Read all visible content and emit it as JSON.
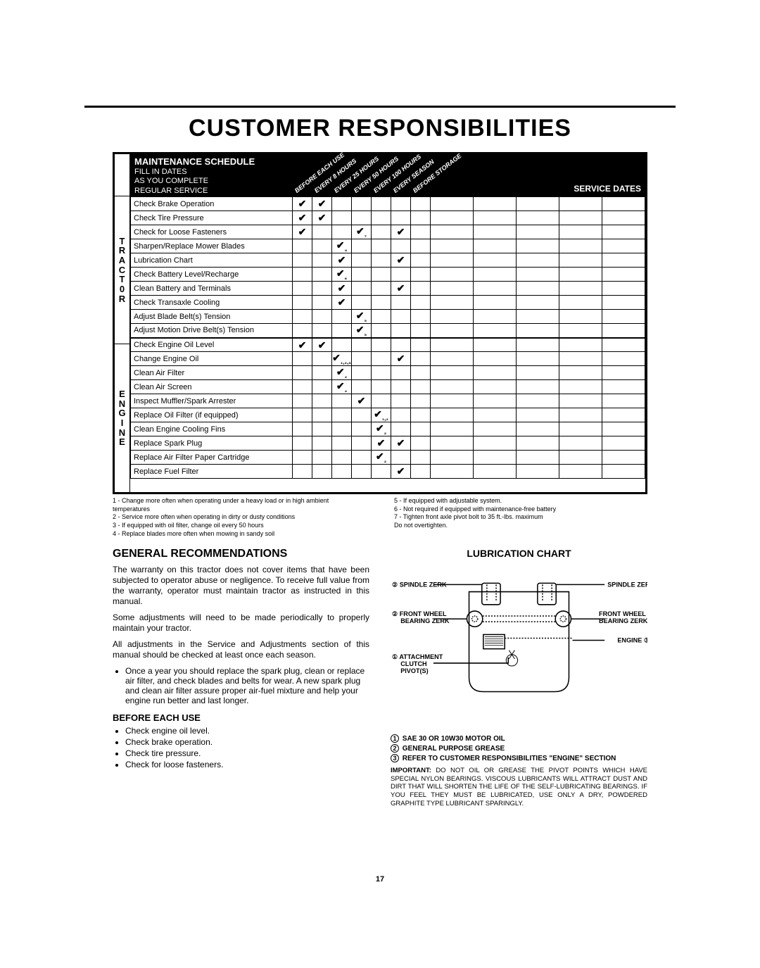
{
  "title": "CUSTOMER RESPONSIBILITIES",
  "schedule": {
    "heading": "MAINTENANCE SCHEDULE",
    "sub1": "FILL IN DATES",
    "sub2": "AS YOU COMPLETE",
    "sub3": "REGULAR SERVICE",
    "service_dates_label": "SERVICE DATES",
    "columns": [
      "BEFORE EACH USE",
      "EVERY 8 HOURS",
      "EVERY 25 HOURS",
      "EVERY 50 HOURS",
      "EVERY 100 HOURS",
      "EVERY SEASON",
      "BEFORE STORAGE"
    ],
    "groups": [
      {
        "label": "TRACT0R",
        "rows": [
          {
            "label": "Check Brake Operation",
            "checks": [
              "✔",
              "✔",
              "",
              "",
              "",
              "",
              ""
            ]
          },
          {
            "label": "Check Tire Pressure",
            "checks": [
              "✔",
              "✔",
              "",
              "",
              "",
              "",
              ""
            ]
          },
          {
            "label": "Check for Loose Fasteners",
            "checks": [
              "✔",
              "",
              "",
              "✔₇",
              "",
              "✔",
              ""
            ]
          },
          {
            "label": "Sharpen/Replace Mower Blades",
            "checks": [
              "",
              "",
              "✔₄",
              "",
              "",
              "",
              ""
            ]
          },
          {
            "label": "Lubrication Chart",
            "checks": [
              "",
              "",
              "✔",
              "",
              "",
              "✔",
              ""
            ]
          },
          {
            "label": "Check Battery Level/Recharge",
            "checks": [
              "",
              "",
              "✔₆",
              "",
              "",
              "",
              ""
            ]
          },
          {
            "label": "Clean Battery and Terminals",
            "checks": [
              "",
              "",
              "✔",
              "",
              "",
              "✔",
              ""
            ]
          },
          {
            "label": "Check Transaxle Cooling",
            "checks": [
              "",
              "",
              "✔",
              "",
              "",
              "",
              ""
            ]
          },
          {
            "label": "Adjust Blade Belt(s) Tension",
            "checks": [
              "",
              "",
              "",
              "✔₅",
              "",
              "",
              ""
            ]
          },
          {
            "label": "Adjust Motion Drive Belt(s) Tension",
            "checks": [
              "",
              "",
              "",
              "✔₅",
              "",
              "",
              ""
            ]
          }
        ]
      },
      {
        "label": "ENGINE",
        "rows": [
          {
            "label": "Check Engine Oil Level",
            "checks": [
              "✔",
              "✔",
              "",
              "",
              "",
              "",
              ""
            ]
          },
          {
            "label": "Change Engine Oil",
            "checks": [
              "",
              "",
              "✔₁,₂,₃",
              "",
              "",
              "✔",
              ""
            ]
          },
          {
            "label": "Clean Air Filter",
            "checks": [
              "",
              "",
              "✔₂",
              "",
              "",
              "",
              ""
            ]
          },
          {
            "label": "Clean Air Screen",
            "checks": [
              "",
              "",
              "✔₂",
              "",
              "",
              "",
              ""
            ]
          },
          {
            "label": "Inspect Muffler/Spark Arrester",
            "checks": [
              "",
              "",
              "",
              "✔",
              "",
              "",
              ""
            ]
          },
          {
            "label": "Replace Oil Filter (if equipped)",
            "checks": [
              "",
              "",
              "",
              "",
              "✔₁,₂",
              "",
              ""
            ]
          },
          {
            "label": "Clean Engine Cooling Fins",
            "checks": [
              "",
              "",
              "",
              "",
              "✔₂",
              "",
              ""
            ]
          },
          {
            "label": "Replace Spark Plug",
            "checks": [
              "",
              "",
              "",
              "",
              "✔",
              "✔",
              ""
            ]
          },
          {
            "label": "Replace Air Filter Paper Cartridge",
            "checks": [
              "",
              "",
              "",
              "",
              "✔₂",
              "",
              ""
            ]
          },
          {
            "label": "Replace Fuel Filter",
            "checks": [
              "",
              "",
              "",
              "",
              "",
              "✔",
              ""
            ]
          }
        ]
      }
    ]
  },
  "footnotes_left": [
    "1 - Change more often when operating under a heavy load or in high ambient temperatures",
    "2 - Service more often when operating in dirty or dusty conditions",
    "3 - If equipped with oil filter, change oil every 50 hours",
    "4 - Replace blades more often when mowing in sandy soil"
  ],
  "footnotes_right": [
    "5 - If equipped with adjustable system.",
    "6 - Not required if equipped with maintenance-free battery",
    "7 - Tighten front axle pivot bolt to 35 ft.-lbs. maximum",
    "     Do not overtighten."
  ],
  "general": {
    "heading": "GENERAL RECOMMENDATIONS",
    "p1": "The warranty on this tractor does not cover items that have been subjected to operator abuse or negligence. To receive full value from the warranty, operator must maintain tractor as instructed in this manual.",
    "p2": "Some adjustments will need to be made periodically to properly maintain your tractor.",
    "p3": "All adjustments in the Service and Adjustments section of this manual should be checked at least once each season.",
    "bullet": "Once a year you should replace the spark plug, clean or replace air filter, and check blades and belts for wear. A new spark plug and clean air filter assure proper air-fuel mixture and help your engine run better and last longer.",
    "before_heading": "BEFORE EACH USE",
    "before_items": [
      "Check engine oil level.",
      "Check brake operation.",
      "Check tire pressure.",
      "Check for loose fasteners."
    ]
  },
  "lubrication": {
    "heading": "LUBRICATION CHART",
    "labels": {
      "spindle_zerk": "SPINDLE ZERK",
      "front_wheel_bearing_zerk": "FRONT WHEEL\nBEARING ZERK",
      "engine": "ENGINE",
      "attachment_clutch": "ATTACHMENT\nCLUTCH\nPIVOT(S)"
    },
    "legend": [
      {
        "n": "1",
        "t": "SAE 30 OR 10W30 MOTOR OIL"
      },
      {
        "n": "2",
        "t": "GENERAL PURPOSE GREASE"
      },
      {
        "n": "3",
        "t": "REFER TO CUSTOMER RESPONSIBILITIES \"ENGINE\" SECTION"
      }
    ],
    "important": "IMPORTANT: DO NOT OIL OR GREASE THE PIVOT POINTS WHICH HAVE SPECIAL NYLON BEARINGS. VISCOUS LUBRICANTS WILL ATTRACT DUST AND DIRT THAT WILL SHORTEN THE LIFE OF THE SELF-LUBRICATING BEARINGS. IF YOU FEEL THEY MUST BE LUBRICATED, USE ONLY A DRY, POWDERED GRAPHITE TYPE LUBRICANT SPARINGLY."
  },
  "page_number": "17"
}
